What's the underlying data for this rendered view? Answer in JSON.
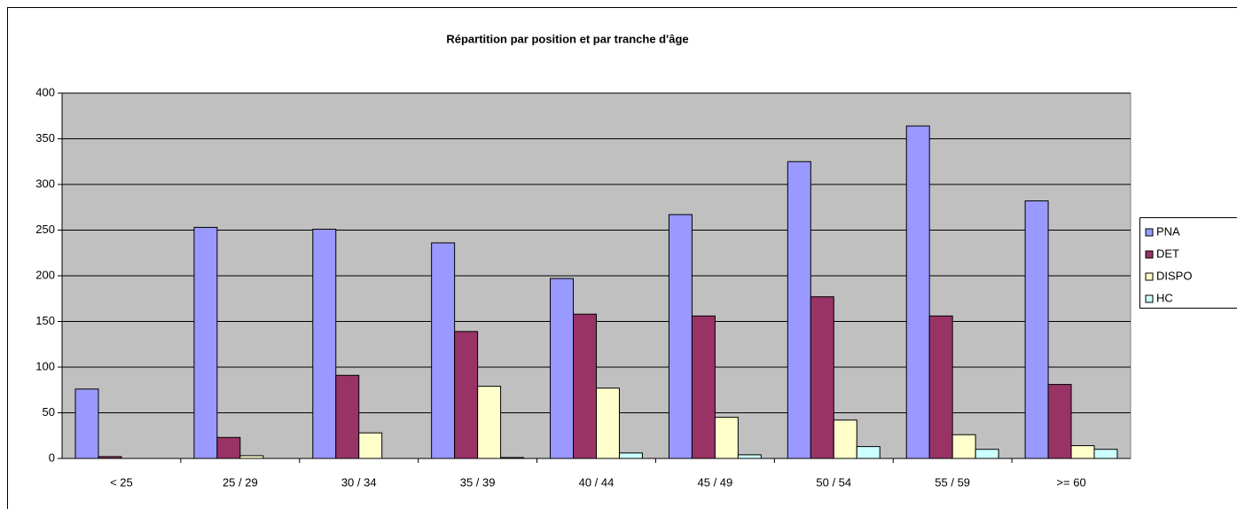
{
  "chart_data": {
    "type": "bar",
    "title": "Répartition par position et par tranche d'âge",
    "categories": [
      "< 25",
      "25 / 29",
      "30 / 34",
      "35 / 39",
      "40 / 44",
      "45 / 49",
      "50 / 54",
      "55 / 59",
      ">= 60"
    ],
    "series": [
      {
        "name": "PNA",
        "color": "#9999ff",
        "values": [
          76,
          253,
          251,
          236,
          197,
          267,
          325,
          364,
          282
        ]
      },
      {
        "name": "DET",
        "color": "#993366",
        "values": [
          2,
          23,
          91,
          139,
          158,
          156,
          177,
          156,
          81
        ]
      },
      {
        "name": "DISPO",
        "color": "#ffffcc",
        "values": [
          0,
          3,
          28,
          79,
          77,
          45,
          42,
          26,
          14
        ]
      },
      {
        "name": "HC",
        "color": "#ccffff",
        "values": [
          0,
          0,
          0,
          1,
          6,
          4,
          13,
          10,
          10
        ]
      }
    ],
    "ylim": [
      0,
      400
    ],
    "yticks": [
      0,
      50,
      100,
      150,
      200,
      250,
      300,
      350,
      400
    ],
    "grid": true,
    "legend": "right"
  }
}
